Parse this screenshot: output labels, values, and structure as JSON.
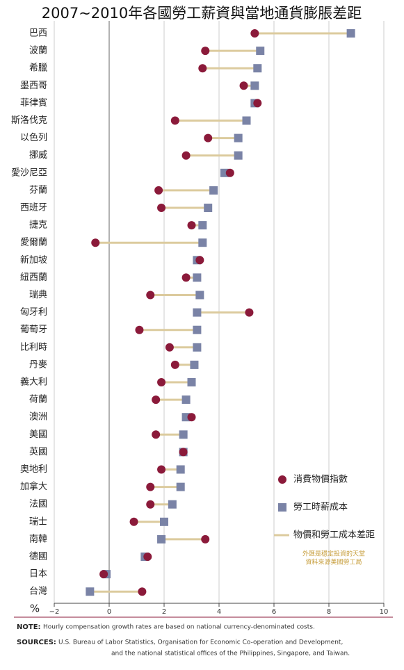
{
  "chart_data": {
    "type": "dumbbell",
    "title": "2007~2010年各國勞工薪資與當地通貨膨脹差距",
    "categories": [
      "巴西",
      "波蘭",
      "希臘",
      "墨西哥",
      "菲律賓",
      "斯洛伐克",
      "以色列",
      "挪威",
      "愛沙尼亞",
      "芬蘭",
      "西班牙",
      "捷克",
      "愛爾蘭",
      "新加坡",
      "紐西蘭",
      "瑞典",
      "匈牙利",
      "葡萄牙",
      "比利時",
      "丹麥",
      "義大利",
      "荷蘭",
      "澳洲",
      "美國",
      "英國",
      "奧地利",
      "加拿大",
      "法國",
      "瑞士",
      "南韓",
      "德國",
      "日本",
      "台灣"
    ],
    "series": [
      {
        "name": "消費物價指數",
        "color": "#8b1a3a",
        "marker": "circle",
        "values": [
          5.3,
          3.5,
          3.4,
          4.9,
          5.4,
          2.4,
          3.6,
          2.8,
          4.4,
          1.8,
          1.9,
          3.0,
          -0.5,
          3.3,
          2.8,
          1.5,
          5.1,
          1.1,
          2.2,
          2.4,
          1.9,
          1.7,
          3.0,
          1.7,
          2.7,
          1.9,
          1.5,
          1.5,
          0.9,
          3.5,
          1.4,
          -0.2,
          1.2
        ]
      },
      {
        "name": "勞工時薪成本",
        "color": "#7a83a6",
        "marker": "square",
        "values": [
          8.8,
          5.5,
          5.4,
          5.3,
          5.3,
          5.0,
          4.7,
          4.7,
          4.2,
          3.8,
          3.6,
          3.4,
          3.4,
          3.2,
          3.2,
          3.3,
          3.2,
          3.2,
          3.2,
          3.1,
          3.0,
          2.8,
          2.8,
          2.7,
          2.7,
          2.6,
          2.6,
          2.3,
          2.0,
          1.9,
          1.3,
          -0.1,
          -0.7
        ]
      }
    ],
    "connector": {
      "name": "物價和勞工成本差距",
      "color": "#dccb9e"
    },
    "x_label": "%",
    "xlim": [
      -2,
      10
    ],
    "xticks": [
      {
        "value": -2,
        "label": "−2"
      },
      0,
      2,
      4,
      6,
      8,
      10
    ],
    "grid": true,
    "annotations": [
      "外匯是穩定投資的天堂",
      "資料來源美國勞工局"
    ],
    "footnotes": [
      {
        "label": "NOTE:",
        "lines": [
          "Hourly compensation growth rates are based on national currency-denominated costs."
        ]
      },
      {
        "label": "SOURCES:",
        "lines": [
          "U.S. Bureau of Labor Statistics, Organisation for Economic Co-operation and Development,",
          "and the national statistical offices of the Philippines, Singapore, and Taiwan."
        ]
      }
    ]
  }
}
